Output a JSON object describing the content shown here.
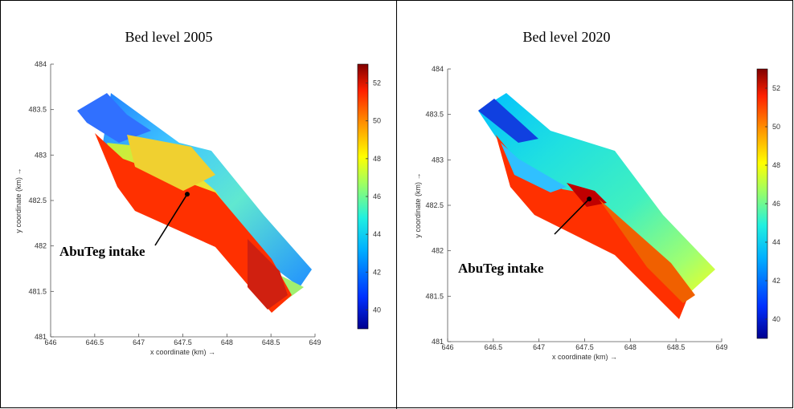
{
  "chart_data": [
    {
      "type": "heatmap",
      "title": "Bed level 2005",
      "xlabel": "x coordinate (km) →",
      "ylabel": "y coordinate (km) →",
      "xlim": [
        646,
        649
      ],
      "ylim": [
        481,
        484
      ],
      "xticks": [
        "646",
        "646.5",
        "647",
        "647.5",
        "648",
        "648.5",
        "649"
      ],
      "yticks": [
        "481",
        "481.5",
        "482",
        "482.5",
        "483",
        "483.5",
        "484"
      ],
      "colorbar": {
        "min": 39,
        "max": 53,
        "ticks": [
          "40",
          "42",
          "44",
          "46",
          "48",
          "50",
          "52"
        ]
      },
      "annotation": {
        "text": "AbuTeg intake",
        "point": [
          647.55,
          482.57
        ]
      }
    },
    {
      "type": "heatmap",
      "title": "Bed level 2020",
      "xlabel": "x coordinate (km) →",
      "ylabel": "y coordinate (km) →",
      "xlim": [
        646,
        649
      ],
      "ylim": [
        481,
        484
      ],
      "xticks": [
        "646",
        "646.5",
        "647",
        "647.5",
        "648",
        "648.5",
        "649"
      ],
      "yticks": [
        "481",
        "481.5",
        "482",
        "482.5",
        "483",
        "483.5",
        "484"
      ],
      "colorbar": {
        "min": 39,
        "max": 53,
        "ticks": [
          "40",
          "42",
          "44",
          "46",
          "48",
          "50",
          "52"
        ]
      },
      "annotation": {
        "text": "AbuTeg intake",
        "point": [
          647.55,
          482.57
        ]
      }
    }
  ],
  "colors": {
    "colormap": [
      "#00008f",
      "#0050ff",
      "#00e0ff",
      "#80ff80",
      "#ffff00",
      "#ff8000",
      "#ff2000",
      "#800000"
    ],
    "border": "#000000"
  }
}
